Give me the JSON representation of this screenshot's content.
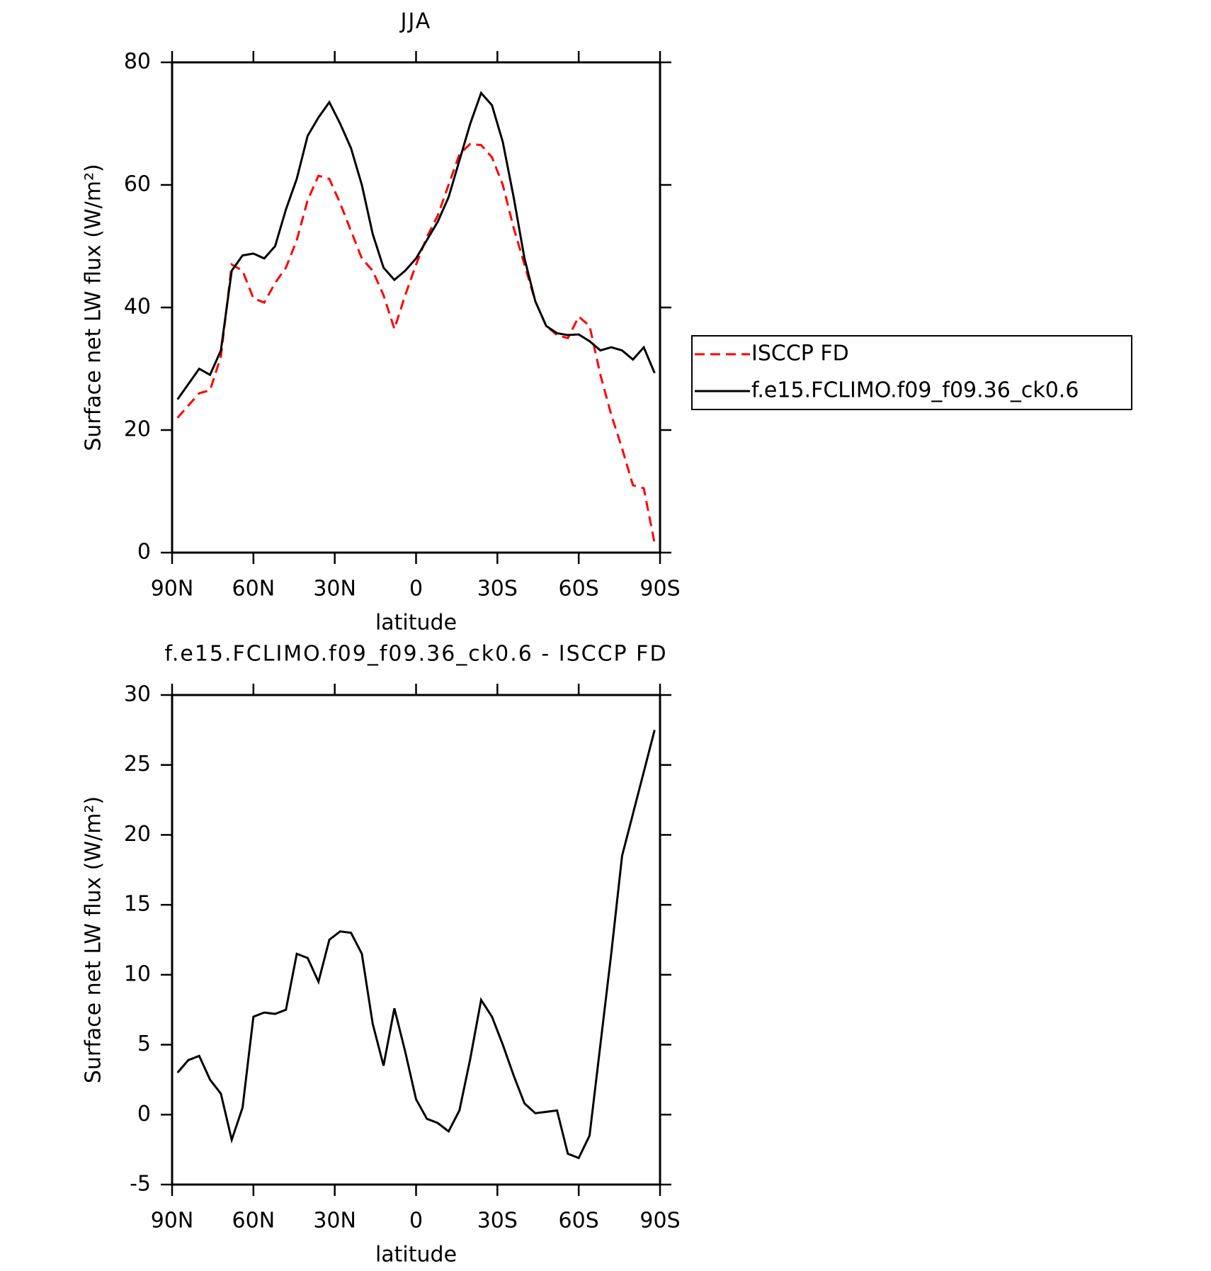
{
  "chart_data": [
    {
      "type": "line",
      "title": "JJA",
      "x_label": "latitude",
      "y_label": "Surface net LW flux (W/m²)",
      "x": [
        88,
        84,
        80,
        76,
        72,
        68,
        64,
        60,
        56,
        52,
        48,
        44,
        40,
        36,
        32,
        28,
        24,
        20,
        16,
        12,
        8,
        4,
        0,
        -4,
        -8,
        -12,
        -16,
        -20,
        -24,
        -28,
        -32,
        -36,
        -40,
        -44,
        -48,
        -52,
        -56,
        -60,
        -64,
        -68,
        -72,
        -76,
        -80,
        -84,
        -88
      ],
      "series": [
        {
          "name": "ISCCP FD",
          "color": "#ff0000",
          "dash": true,
          "values": [
            22,
            24,
            26,
            26.5,
            32,
            47,
            46,
            41.5,
            40.8,
            44,
            46.5,
            51,
            57.5,
            61.5,
            61,
            57,
            52.5,
            48,
            46,
            42,
            36.5,
            42,
            47,
            51.5,
            55,
            60,
            65,
            66.7,
            66.5,
            64.5,
            60,
            53,
            47,
            41,
            37,
            35.5,
            35,
            38.5,
            37,
            29,
            22.5,
            17,
            11,
            10.5,
            1.5
          ]
        },
        {
          "name": "f.e15.FCLIMO.f09_f09.36_ck0.6",
          "color": "#000000",
          "dash": false,
          "values": [
            25,
            27.5,
            30,
            29,
            33,
            46,
            48.5,
            48.8,
            48,
            50,
            56,
            61,
            68,
            71,
            73.5,
            70,
            66,
            60,
            52,
            46.5,
            44.5,
            46,
            48,
            51,
            54,
            58,
            64,
            70,
            75,
            73,
            67,
            58,
            48,
            41,
            37,
            35.8,
            35.5,
            35.6,
            34.5,
            33,
            33.5,
            33,
            31.5,
            33.5,
            29.3
          ]
        }
      ],
      "xlim": [
        90,
        -90
      ],
      "xticks": [
        {
          "value": 90,
          "label": "90N"
        },
        {
          "value": 60,
          "label": "60N"
        },
        {
          "value": 30,
          "label": "30N"
        },
        0,
        {
          "value": -30,
          "label": "30S"
        },
        {
          "value": -60,
          "label": "60S"
        },
        {
          "value": -90,
          "label": "90S"
        }
      ],
      "ylim": [
        0,
        80
      ],
      "yticks": [
        0,
        20,
        40,
        60,
        80
      ],
      "legend": "right",
      "grid": false
    },
    {
      "type": "line",
      "title": "f.e15.FCLIMO.f09_f09.36_ck0.6 - ISCCP FD",
      "x_label": "latitude",
      "y_label": "Surface net LW flux (W/m²)",
      "x": [
        88,
        84,
        80,
        76,
        72,
        68,
        64,
        60,
        56,
        52,
        48,
        44,
        40,
        36,
        32,
        28,
        24,
        20,
        16,
        12,
        8,
        4,
        0,
        -4,
        -8,
        -12,
        -16,
        -20,
        -24,
        -28,
        -32,
        -36,
        -40,
        -44,
        -48,
        -52,
        -56,
        -60,
        -64,
        -68,
        -72,
        -76,
        -80,
        -84,
        -88
      ],
      "series": [
        {
          "color": "#000000",
          "dash": false,
          "values": [
            3,
            3.9,
            4.2,
            2.5,
            1.5,
            -1.8,
            0.5,
            7,
            7.3,
            7.2,
            7.5,
            11.5,
            11.2,
            9.5,
            12.5,
            13.1,
            13,
            11.5,
            6.5,
            3.5,
            7.6,
            4.5,
            1.1,
            -0.3,
            -0.6,
            -1.2,
            0.3,
            4,
            8.2,
            7,
            5,
            2.8,
            0.8,
            0.1,
            0.2,
            0.3,
            -2.8,
            -3.1,
            -1.5,
            5,
            11.5,
            18.5,
            21.5,
            24.5,
            27.5
          ]
        }
      ],
      "xlim": [
        90,
        -90
      ],
      "xticks": [
        {
          "value": 90,
          "label": "90N"
        },
        {
          "value": 60,
          "label": "60N"
        },
        {
          "value": 30,
          "label": "30N"
        },
        0,
        {
          "value": -30,
          "label": "30S"
        },
        {
          "value": -60,
          "label": "60S"
        },
        {
          "value": -90,
          "label": "90S"
        }
      ],
      "ylim": [
        -5,
        30
      ],
      "yticks": [
        -5,
        0,
        5,
        10,
        15,
        20,
        25,
        30
      ],
      "grid": false
    }
  ]
}
